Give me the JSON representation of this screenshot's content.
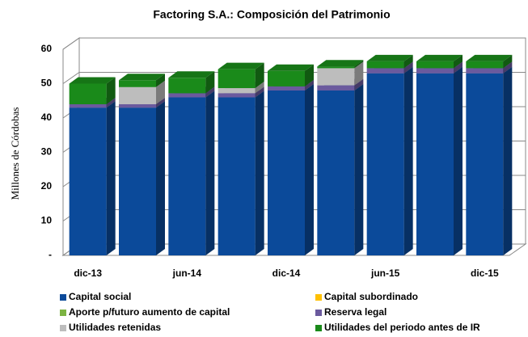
{
  "chart_data": {
    "type": "bar3d_stacked",
    "title": "Factoring S.A.: Composición del Patrimonio",
    "y_label": "Millones de Córdobas",
    "categories": [
      "dic-13",
      null,
      "jun-14",
      null,
      "dic-14",
      null,
      "jun-15",
      null,
      "dic-15"
    ],
    "series": [
      {
        "name": "Capital social",
        "color": "#0b4a9a",
        "values": [
          43,
          43,
          46,
          46,
          48,
          48,
          53,
          53,
          53
        ]
      },
      {
        "name": "Capital subordinado",
        "color": "#ffc000",
        "values": [
          0,
          0,
          0,
          0,
          0,
          0,
          0,
          0,
          0
        ]
      },
      {
        "name": "Aporte p/futuro aumento de capital",
        "color": "#7cb342",
        "values": [
          0,
          0,
          0,
          0,
          0,
          0,
          0,
          0,
          0
        ]
      },
      {
        "name": "Reserva legal",
        "color": "#6b5a9e",
        "values": [
          1,
          1,
          1.2,
          1.2,
          1.2,
          1.5,
          1.5,
          1.5,
          1.5
        ]
      },
      {
        "name": "Utilidades retenidas",
        "color": "#bdbdbd",
        "values": [
          0,
          5,
          0,
          1.5,
          0,
          5,
          0,
          0,
          0
        ]
      },
      {
        "name": "Utilidades del periodo antes de IR",
        "color": "#1a8a1a",
        "values": [
          6,
          2,
          4.5,
          5.5,
          4.5,
          0.5,
          2,
          2,
          2
        ]
      }
    ],
    "ylim": [
      0,
      60
    ],
    "yticks": [
      {
        "value": 0,
        "label": "-"
      },
      10,
      20,
      30,
      40,
      50,
      60
    ],
    "grid": true
  }
}
